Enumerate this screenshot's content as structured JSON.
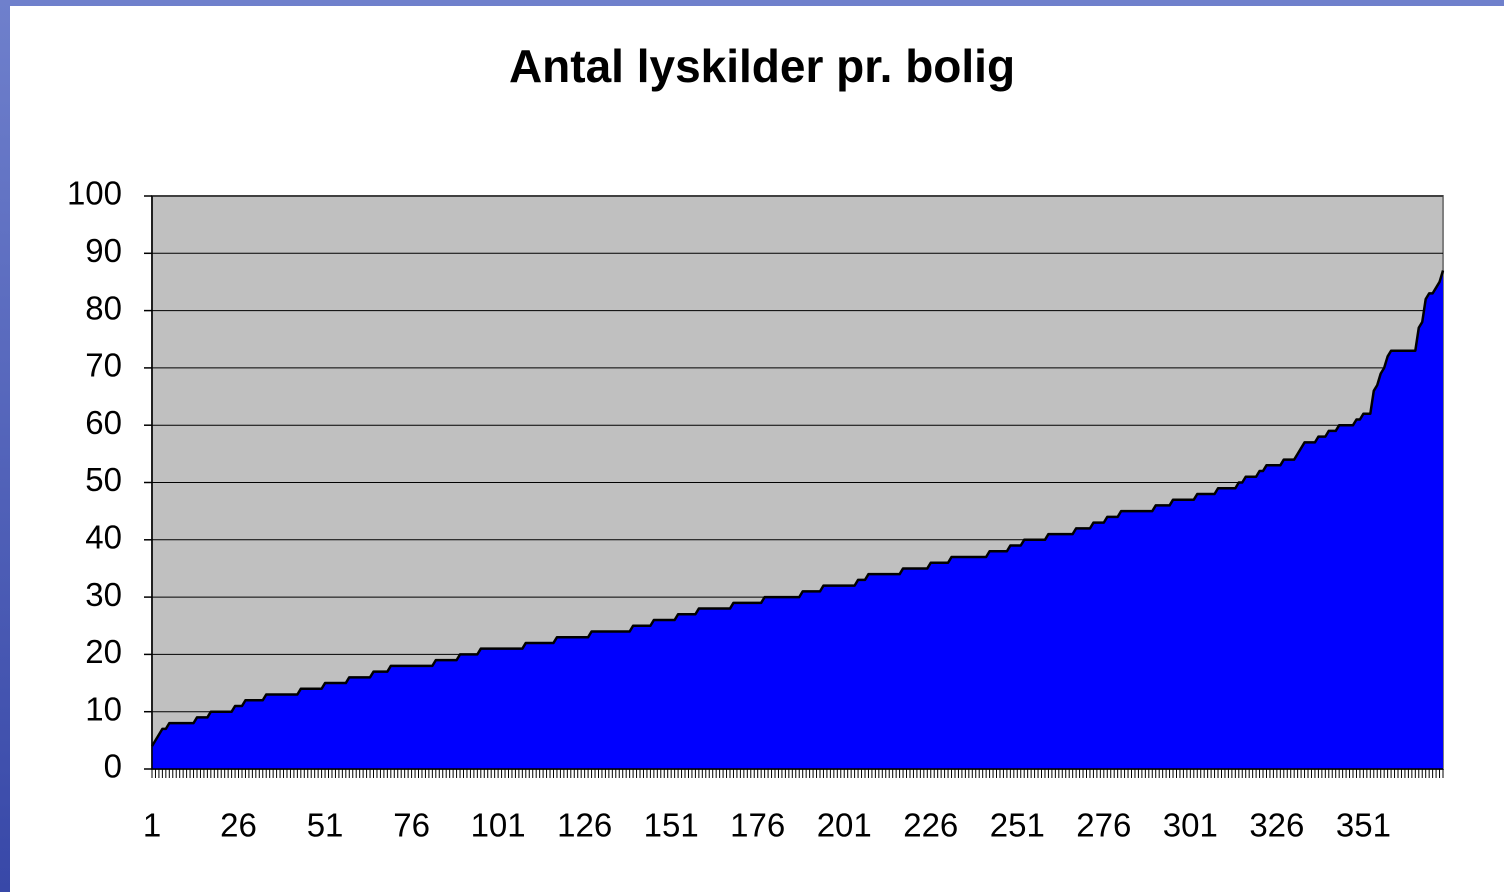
{
  "chart_data": {
    "type": "area",
    "title": "Antal lyskilder pr. bolig",
    "categories": [
      "1",
      null,
      null,
      null,
      null,
      null,
      null,
      null,
      null,
      null,
      null,
      null,
      null,
      null,
      null,
      null,
      null,
      null,
      null,
      null,
      null,
      null,
      null,
      null,
      null,
      "26",
      null,
      null,
      null,
      null,
      null,
      null,
      null,
      null,
      null,
      null,
      null,
      null,
      null,
      null,
      null,
      null,
      null,
      null,
      null,
      null,
      null,
      null,
      null,
      null,
      "51",
      null,
      null,
      null,
      null,
      null,
      null,
      null,
      null,
      null,
      null,
      null,
      null,
      null,
      null,
      null,
      null,
      null,
      null,
      null,
      null,
      null,
      null,
      null,
      null,
      "76",
      null,
      null,
      null,
      null,
      null,
      null,
      null,
      null,
      null,
      null,
      null,
      null,
      null,
      null,
      null,
      null,
      null,
      null,
      null,
      null,
      null,
      null,
      null,
      null,
      "101",
      null,
      null,
      null,
      null,
      null,
      null,
      null,
      null,
      null,
      null,
      null,
      null,
      null,
      null,
      null,
      null,
      null,
      null,
      null,
      null,
      null,
      null,
      null,
      null,
      "126",
      null,
      null,
      null,
      null,
      null,
      null,
      null,
      null,
      null,
      null,
      null,
      null,
      null,
      null,
      null,
      null,
      null,
      null,
      null,
      null,
      null,
      null,
      null,
      null,
      "151",
      null,
      null,
      null,
      null,
      null,
      null,
      null,
      null,
      null,
      null,
      null,
      null,
      null,
      null,
      null,
      null,
      null,
      null,
      null,
      null,
      null,
      null,
      null,
      null,
      "176",
      null,
      null,
      null,
      null,
      null,
      null,
      null,
      null,
      null,
      null,
      null,
      null,
      null,
      null,
      null,
      null,
      null,
      null,
      null,
      null,
      null,
      null,
      null,
      null,
      "201",
      null,
      null,
      null,
      null,
      null,
      null,
      null,
      null,
      null,
      null,
      null,
      null,
      null,
      null,
      null,
      null,
      null,
      null,
      null,
      null,
      null,
      null,
      null,
      null,
      "226",
      null,
      null,
      null,
      null,
      null,
      null,
      null,
      null,
      null,
      null,
      null,
      null,
      null,
      null,
      null,
      null,
      null,
      null,
      null,
      null,
      null,
      null,
      null,
      null,
      "251",
      null,
      null,
      null,
      null,
      null,
      null,
      null,
      null,
      null,
      null,
      null,
      null,
      null,
      null,
      null,
      null,
      null,
      null,
      null,
      null,
      null,
      null,
      null,
      null,
      "276",
      null,
      null,
      null,
      null,
      null,
      null,
      null,
      null,
      null,
      null,
      null,
      null,
      null,
      null,
      null,
      null,
      null,
      null,
      null,
      null,
      null,
      null,
      null,
      null,
      "301",
      null,
      null,
      null,
      null,
      null,
      null,
      null,
      null,
      null,
      null,
      null,
      null,
      null,
      null,
      null,
      null,
      null,
      null,
      null,
      null,
      null,
      null,
      null,
      null,
      "326",
      null,
      null,
      null,
      null,
      null,
      null,
      null,
      null,
      null,
      null,
      null,
      null,
      null,
      null,
      null,
      null,
      null,
      null,
      null,
      null,
      null,
      null,
      null,
      null,
      "351",
      null,
      null,
      null,
      null,
      null,
      null,
      null,
      null,
      null,
      null,
      null,
      null,
      null,
      null,
      null,
      null,
      null,
      null,
      null,
      null,
      null,
      null,
      null
    ],
    "values": [
      4,
      5,
      6,
      7,
      7,
      8,
      8,
      8,
      8,
      8,
      8,
      8,
      8,
      9,
      9,
      9,
      9,
      10,
      10,
      10,
      10,
      10,
      10,
      10,
      11,
      11,
      11,
      12,
      12,
      12,
      12,
      12,
      12,
      13,
      13,
      13,
      13,
      13,
      13,
      13,
      13,
      13,
      13,
      14,
      14,
      14,
      14,
      14,
      14,
      14,
      15,
      15,
      15,
      15,
      15,
      15,
      15,
      16,
      16,
      16,
      16,
      16,
      16,
      16,
      17,
      17,
      17,
      17,
      17,
      18,
      18,
      18,
      18,
      18,
      18,
      18,
      18,
      18,
      18,
      18,
      18,
      18,
      19,
      19,
      19,
      19,
      19,
      19,
      19,
      20,
      20,
      20,
      20,
      20,
      20,
      21,
      21,
      21,
      21,
      21,
      21,
      21,
      21,
      21,
      21,
      21,
      21,
      21,
      22,
      22,
      22,
      22,
      22,
      22,
      22,
      22,
      22,
      23,
      23,
      23,
      23,
      23,
      23,
      23,
      23,
      23,
      23,
      24,
      24,
      24,
      24,
      24,
      24,
      24,
      24,
      24,
      24,
      24,
      24,
      25,
      25,
      25,
      25,
      25,
      25,
      26,
      26,
      26,
      26,
      26,
      26,
      26,
      27,
      27,
      27,
      27,
      27,
      27,
      28,
      28,
      28,
      28,
      28,
      28,
      28,
      28,
      28,
      28,
      29,
      29,
      29,
      29,
      29,
      29,
      29,
      29,
      29,
      30,
      30,
      30,
      30,
      30,
      30,
      30,
      30,
      30,
      30,
      30,
      31,
      31,
      31,
      31,
      31,
      31,
      32,
      32,
      32,
      32,
      32,
      32,
      32,
      32,
      32,
      32,
      33,
      33,
      33,
      34,
      34,
      34,
      34,
      34,
      34,
      34,
      34,
      34,
      34,
      35,
      35,
      35,
      35,
      35,
      35,
      35,
      35,
      36,
      36,
      36,
      36,
      36,
      36,
      37,
      37,
      37,
      37,
      37,
      37,
      37,
      37,
      37,
      37,
      37,
      38,
      38,
      38,
      38,
      38,
      38,
      39,
      39,
      39,
      39,
      40,
      40,
      40,
      40,
      40,
      40,
      40,
      41,
      41,
      41,
      41,
      41,
      41,
      41,
      41,
      42,
      42,
      42,
      42,
      42,
      43,
      43,
      43,
      43,
      44,
      44,
      44,
      44,
      45,
      45,
      45,
      45,
      45,
      45,
      45,
      45,
      45,
      45,
      46,
      46,
      46,
      46,
      46,
      47,
      47,
      47,
      47,
      47,
      47,
      47,
      48,
      48,
      48,
      48,
      48,
      48,
      49,
      49,
      49,
      49,
      49,
      49,
      50,
      50,
      51,
      51,
      51,
      51,
      52,
      52,
      53,
      53,
      53,
      53,
      53,
      54,
      54,
      54,
      54,
      55,
      56,
      57,
      57,
      57,
      57,
      58,
      58,
      58,
      59,
      59,
      59,
      60,
      60,
      60,
      60,
      60,
      61,
      61,
      62,
      62,
      62,
      66,
      67,
      69,
      70,
      72,
      73,
      73,
      73,
      73,
      73,
      73,
      73,
      73,
      77,
      78,
      82,
      83,
      83,
      84,
      85,
      87
    ],
    "color": "#0000ff",
    "line_color": "#000000",
    "plot_background": "#c0c0c0",
    "ylim": [
      0,
      100
    ],
    "yticks": [
      0,
      10,
      20,
      30,
      40,
      50,
      60,
      70,
      80,
      90,
      100
    ],
    "grid": true
  }
}
